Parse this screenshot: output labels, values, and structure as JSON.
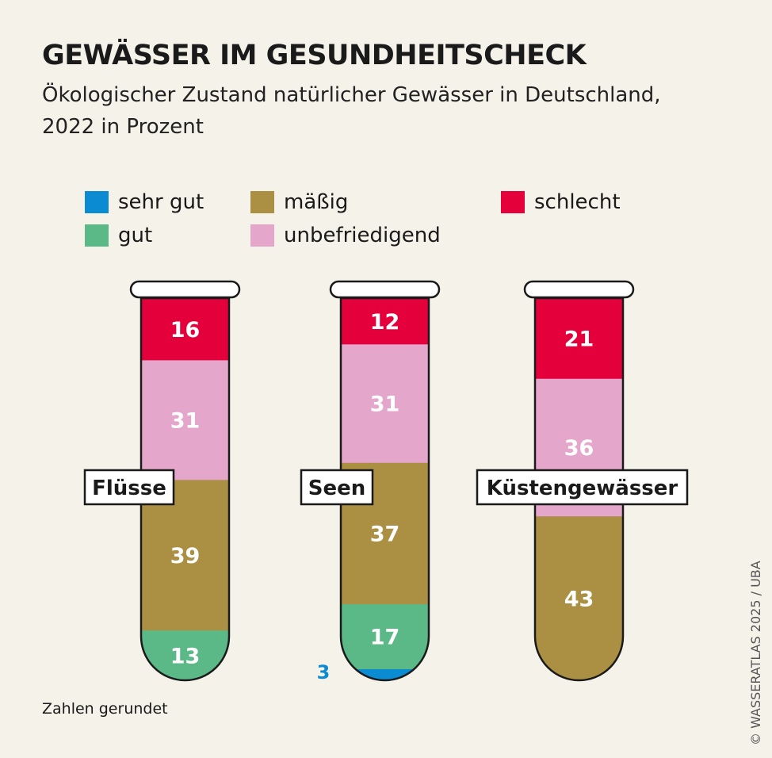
{
  "title": "GEWÄSSER IM GESUNDHEITSCHECK",
  "subtitle": "Ökologischer Zustand natürlicher Gewässer in Deutschland, 2022 in Prozent",
  "note": "Zahlen gerundet",
  "credit": "© WASSERATLAS 2025 / UBA",
  "chart_data": {
    "type": "bar",
    "stacked": true,
    "title": "GEWÄSSER IM GESUNDHEITSCHECK",
    "legend_position": "top",
    "categories": [
      "Flüsse",
      "Seen",
      "Küstengewässer"
    ],
    "series": [
      {
        "name": "sehr gut",
        "color": "#0a8bd2",
        "values": [
          0,
          3,
          0
        ]
      },
      {
        "name": "gut",
        "color": "#5bb887",
        "values": [
          13,
          17,
          0
        ]
      },
      {
        "name": "mäßig",
        "color": "#ab9043",
        "values": [
          39,
          37,
          43
        ]
      },
      {
        "name": "unbefriedigend",
        "color": "#e4a6cb",
        "values": [
          31,
          31,
          36
        ]
      },
      {
        "name": "schlecht",
        "color": "#e4003b",
        "values": [
          16,
          12,
          21
        ]
      }
    ]
  }
}
